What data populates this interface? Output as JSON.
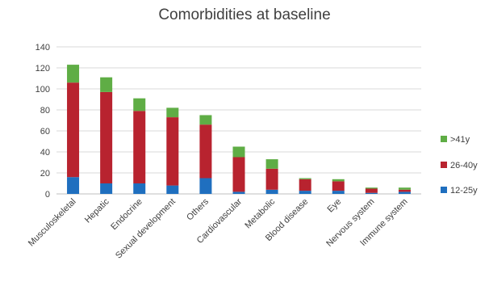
{
  "chart_data": {
    "type": "bar",
    "stacked": true,
    "title": "Comorbidities at baseline",
    "xlabel": "",
    "ylabel": "",
    "ylim": [
      0,
      140
    ],
    "yticks": [
      0,
      20,
      40,
      60,
      80,
      100,
      120,
      140
    ],
    "grid": true,
    "legend_position": "right",
    "categories": [
      "Musculoskeletal",
      "Hepatic",
      "Endocrine",
      "Sexual development",
      "Others",
      "Cardiovascular",
      "Metabolic",
      "Blood disease",
      "Eye",
      "Nervous system",
      "Immune system"
    ],
    "series": [
      {
        "name": "12-25y",
        "color": "#1f6fbf",
        "values": [
          16,
          10,
          10,
          8,
          15,
          2,
          4,
          3,
          3,
          1,
          2
        ]
      },
      {
        "name": "26-40y",
        "color": "#b8232f",
        "values": [
          90,
          87,
          69,
          65,
          51,
          33,
          20,
          11,
          9,
          4,
          2
        ]
      },
      {
        "name": ">41y",
        "color": "#5fad45",
        "values": [
          17,
          14,
          12,
          9,
          9,
          10,
          9,
          1,
          2,
          1,
          2
        ]
      }
    ],
    "legend_order": [
      ">41y",
      "26-40y",
      "12-25y"
    ]
  }
}
